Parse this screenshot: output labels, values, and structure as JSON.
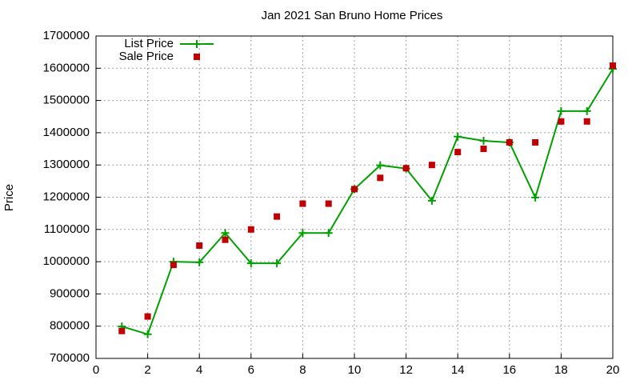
{
  "chart_data": {
    "type": "line",
    "title": "Jan 2021 San Bruno Home Prices",
    "y_label": "Price",
    "x": [
      1,
      2,
      3,
      4,
      5,
      6,
      7,
      8,
      9,
      10,
      11,
      12,
      13,
      14,
      15,
      16,
      17,
      18,
      19,
      20
    ],
    "series": [
      {
        "name": "List Price",
        "color": "#00a000",
        "style": "linespoints",
        "values": [
          799000,
          775000,
          1000000,
          998000,
          1089000,
          995000,
          995000,
          1089000,
          1089000,
          1225000,
          1299000,
          1289000,
          1189000,
          1388000,
          1375000,
          1370000,
          1199000,
          1467000,
          1467000,
          1598000
        ]
      },
      {
        "name": "Sale Price",
        "color": "#c00000",
        "style": "points",
        "values": [
          785000,
          830000,
          990000,
          1050000,
          1068000,
          1100000,
          1140000,
          1180000,
          1180000,
          1225000,
          1260000,
          1290000,
          1300000,
          1340000,
          1350000,
          1370000,
          1370000,
          1435000,
          1435000,
          1608000
        ]
      }
    ],
    "xlim": [
      0,
      20
    ],
    "xticks": [
      0,
      2,
      4,
      6,
      8,
      10,
      12,
      14,
      16,
      18,
      20
    ],
    "ylim": [
      700000,
      1700000
    ],
    "yticks": [
      700000,
      800000,
      900000,
      1000000,
      1100000,
      1200000,
      1300000,
      1400000,
      1500000,
      1600000,
      1700000
    ],
    "grid": true,
    "legend": "top-left"
  }
}
